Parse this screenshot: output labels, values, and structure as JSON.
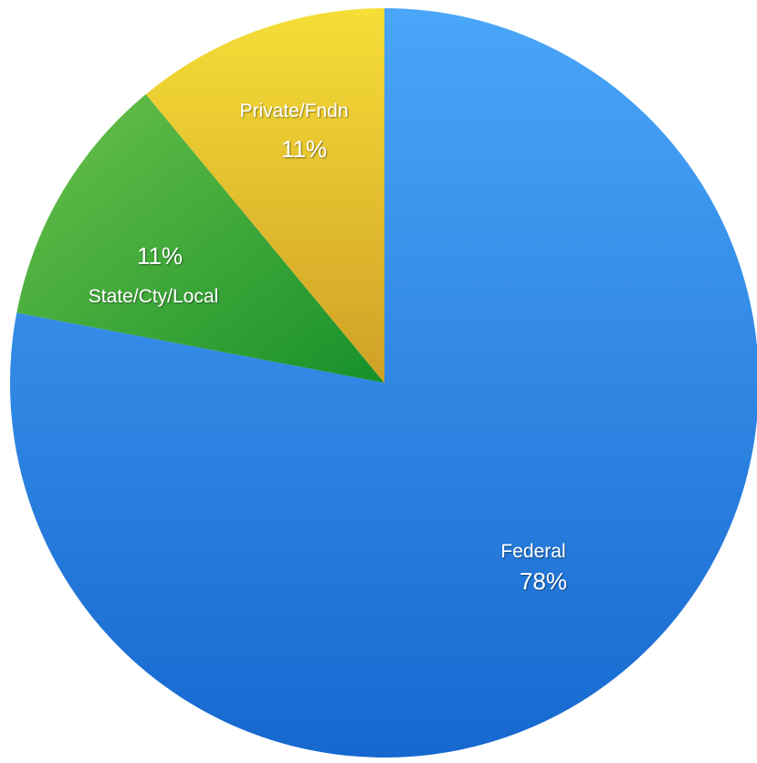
{
  "chart_data": {
    "type": "pie",
    "slices": [
      {
        "label": "Federal",
        "value": 78,
        "value_label": "78%",
        "color": "#2f86e4"
      },
      {
        "label": "State/Cty/Local",
        "value": 11,
        "value_label": "11%",
        "color": "#35a535"
      },
      {
        "label": "Private/Fndn",
        "value": 11,
        "value_label": "11%",
        "color": "#e2b623"
      }
    ],
    "start": "12 o'clock",
    "direction": "clockwise",
    "legend": "none"
  }
}
